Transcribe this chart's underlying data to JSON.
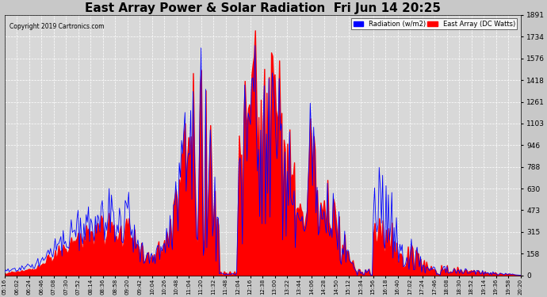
{
  "title": "East Array Power & Solar Radiation  Fri Jun 14 20:25",
  "copyright": "Copyright 2019 Cartronics.com",
  "legend_labels": [
    "Radiation (w/m2)",
    "East Array (DC Watts)"
  ],
  "legend_colors": [
    "blue",
    "red"
  ],
  "y_ticks": [
    0.0,
    157.6,
    315.2,
    472.8,
    630.4,
    788.0,
    945.6,
    1103.2,
    1260.8,
    1418.4,
    1576.0,
    1733.6,
    1891.2
  ],
  "y_max": 1891.2,
  "y_min": 0.0,
  "plot_bg_color": "#d8d8d8",
  "outer_bg_color": "#c8c8c8",
  "grid_color": "#ffffff",
  "title_fontsize": 11,
  "time_labels": [
    "05:16",
    "06:02",
    "06:24",
    "06:46",
    "07:08",
    "07:30",
    "07:52",
    "08:14",
    "08:36",
    "08:58",
    "09:20",
    "09:42",
    "10:04",
    "10:26",
    "10:48",
    "11:04",
    "11:20",
    "11:32",
    "11:48",
    "12:04",
    "12:16",
    "12:38",
    "13:00",
    "13:22",
    "13:44",
    "14:06",
    "14:28",
    "14:50",
    "15:12",
    "15:34",
    "15:56",
    "16:18",
    "16:40",
    "17:02",
    "17:24",
    "17:46",
    "18:08",
    "18:30",
    "18:52",
    "19:14",
    "19:36",
    "19:58",
    "20:20"
  ]
}
